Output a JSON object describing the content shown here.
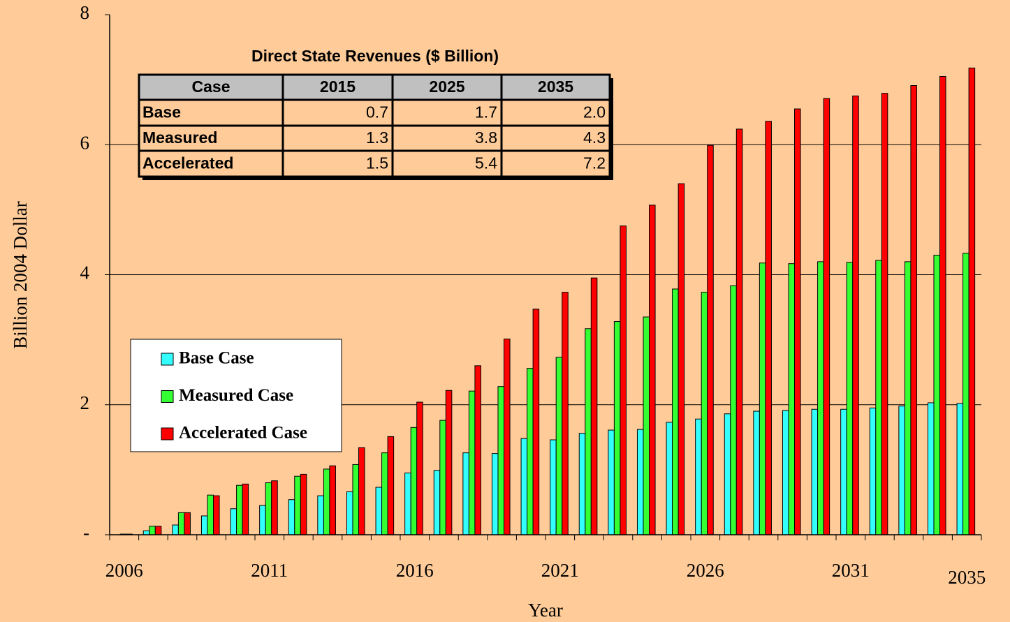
{
  "chart_data": {
    "type": "bar",
    "x_label": "Year",
    "y_label": "Billion 2004 Dollar",
    "categories": [
      "2006",
      null,
      null,
      null,
      null,
      "2011",
      null,
      null,
      null,
      null,
      "2016",
      null,
      null,
      null,
      null,
      "2021",
      null,
      null,
      null,
      null,
      "2026",
      null,
      null,
      null,
      null,
      "2031",
      null,
      null,
      null,
      "2035"
    ],
    "series": [
      {
        "name": "Base Case",
        "color": "#33ffff",
        "values": [
          0,
          0.06,
          0.15,
          0.29,
          0.4,
          0.45,
          0.54,
          0.6,
          0.66,
          0.73,
          0.95,
          0.99,
          1.26,
          1.25,
          1.48,
          1.46,
          1.56,
          1.61,
          1.62,
          1.73,
          1.78,
          1.86,
          1.9,
          1.91,
          1.93,
          1.93,
          1.95,
          1.98,
          2.03,
          2.02
        ]
      },
      {
        "name": "Measured Case",
        "color": "#33ff33",
        "values": [
          0.01,
          0.13,
          0.34,
          0.61,
          0.76,
          0.8,
          0.9,
          1.01,
          1.08,
          1.26,
          1.65,
          1.76,
          2.21,
          2.28,
          2.56,
          2.73,
          3.17,
          3.28,
          3.35,
          3.78,
          3.73,
          3.83,
          4.18,
          4.17,
          4.2,
          4.19,
          4.22,
          4.2,
          4.3,
          4.33
        ]
      },
      {
        "name": "Accelerated Case",
        "color": "#ff0000",
        "values": [
          0.01,
          0.13,
          0.34,
          0.6,
          0.78,
          0.83,
          0.93,
          1.06,
          1.34,
          1.51,
          2.04,
          2.22,
          2.6,
          3.01,
          3.47,
          3.73,
          3.95,
          4.75,
          5.07,
          5.4,
          5.99,
          6.24,
          6.36,
          6.55,
          6.71,
          6.75,
          6.79,
          6.91,
          7.05,
          7.18
        ]
      }
    ],
    "ylim": [
      0,
      8
    ],
    "yticks": [
      {
        "value": 0,
        "label": "-"
      },
      2,
      4,
      6,
      8
    ],
    "grid": true
  },
  "table": {
    "title": "Direct State Revenues ($ Billion)",
    "header": [
      "Case",
      "2015",
      "2025",
      "2035"
    ],
    "rows": [
      [
        "Base",
        "0.7",
        "1.7",
        "2.0"
      ],
      [
        "Measured",
        "1.3",
        "3.8",
        "4.3"
      ],
      [
        "Accelerated",
        "1.5",
        "5.4",
        "7.2"
      ]
    ]
  }
}
